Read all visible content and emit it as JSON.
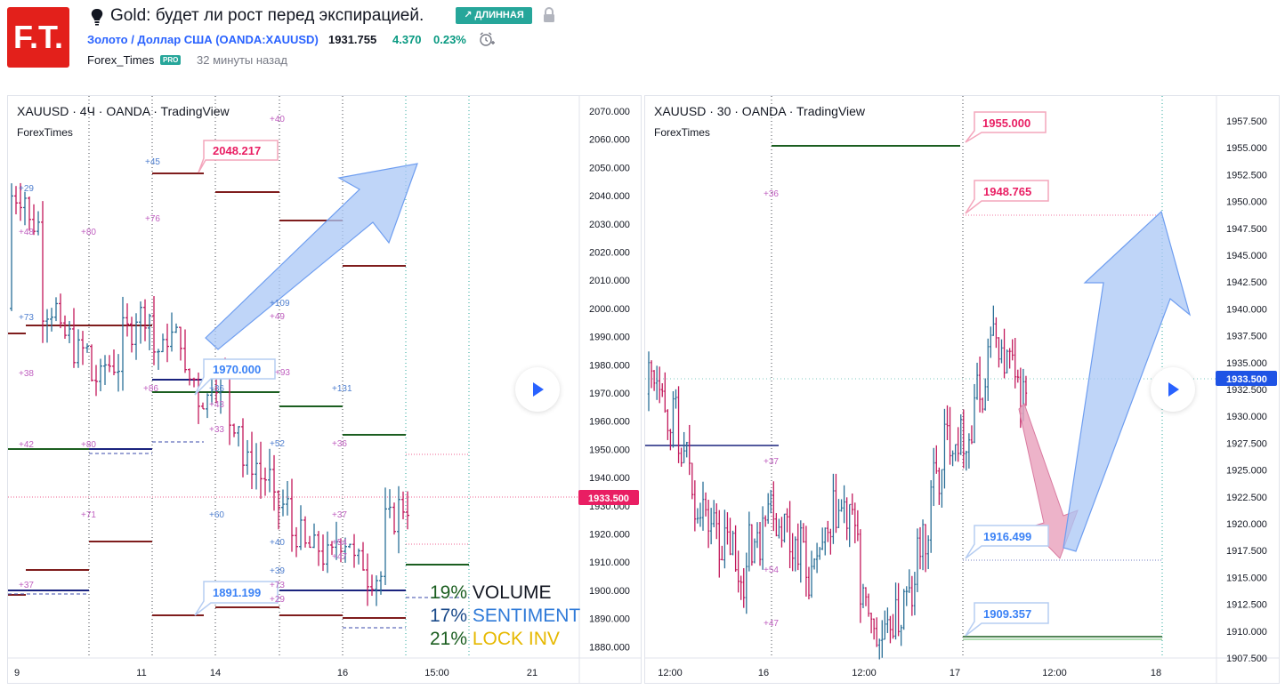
{
  "header": {
    "idea_title": "Gold: будет ли рост перед экспирацией.",
    "direction_badge": "↗ ДЛИННАЯ",
    "symbol_link": "Золото / Доллар США (OANDA:XAUUSD)",
    "last_price": "1931.755",
    "change": "4.370",
    "change_pct": "0.23%",
    "author": "Forex_Times",
    "author_badge": "PRO",
    "published": "32 минуты назад",
    "logo_text": "F.T."
  },
  "colors": {
    "logo_bg": "#e3201b",
    "badge_bg": "#26a69a",
    "link": "#2962ff",
    "positive": "#089981",
    "price_tag": "#e91e63",
    "price_tag_blue": "#1e53e5",
    "arrow_blue": "#a9c7f5",
    "arrow_pink": "#e8a0bb"
  },
  "left_chart": {
    "title": "XAUUSD · 4Ч · OANDA · TradingView",
    "author": "ForexTimes",
    "price_axis": [
      "2070.000",
      "2060.000",
      "2050.000",
      "2040.000",
      "2030.000",
      "2020.000",
      "2010.000",
      "2000.000",
      "1990.000",
      "1980.000",
      "1970.000",
      "1960.000",
      "1950.000",
      "1940.000",
      "1930.000",
      "1920.000",
      "1910.000",
      "1900.000",
      "1890.000",
      "1880.000"
    ],
    "time_axis": [
      "9",
      "11",
      "14",
      "16",
      "15:00",
      "21"
    ],
    "current_price": "1933.500",
    "callouts": [
      "2048.217",
      "1970.000",
      "1891.199"
    ],
    "stats": [
      {
        "pct": "19%",
        "label": "VOLUME"
      },
      {
        "pct": "17%",
        "label": "SENTIMENT"
      },
      {
        "pct": "21%",
        "label": "LOCK INV"
      }
    ],
    "tags": [
      "+29",
      "+48",
      "+80",
      "+45",
      "+76",
      "+40",
      "+73",
      "+38",
      "+86",
      "+36",
      "+43",
      "+33",
      "+109",
      "+49",
      "+93",
      "+131",
      "+42",
      "+80",
      "+52",
      "+36",
      "+71",
      "+60",
      "+37",
      "+54",
      "+40",
      "+47",
      "+37",
      "+39",
      "+73",
      "+29"
    ]
  },
  "right_chart": {
    "title": "XAUUSD · 30 · OANDA · TradingView",
    "author": "ForexTimes",
    "price_axis": [
      "1957.500",
      "1955.000",
      "1952.500",
      "1950.000",
      "1947.500",
      "1945.000",
      "1942.500",
      "1940.000",
      "1937.500",
      "1935.000",
      "1932.500",
      "1930.000",
      "1927.500",
      "1925.000",
      "1922.500",
      "1920.000",
      "1917.500",
      "1915.000",
      "1912.500",
      "1910.000",
      "1907.500"
    ],
    "time_axis": [
      "12:00",
      "16",
      "12:00",
      "17",
      "12:00",
      "18"
    ],
    "current_price": "1933.500",
    "callouts": [
      "1955.000",
      "1948.765",
      "1916.499",
      "1909.357"
    ],
    "tags": [
      "+36",
      "+37",
      "+54",
      "+47"
    ]
  }
}
